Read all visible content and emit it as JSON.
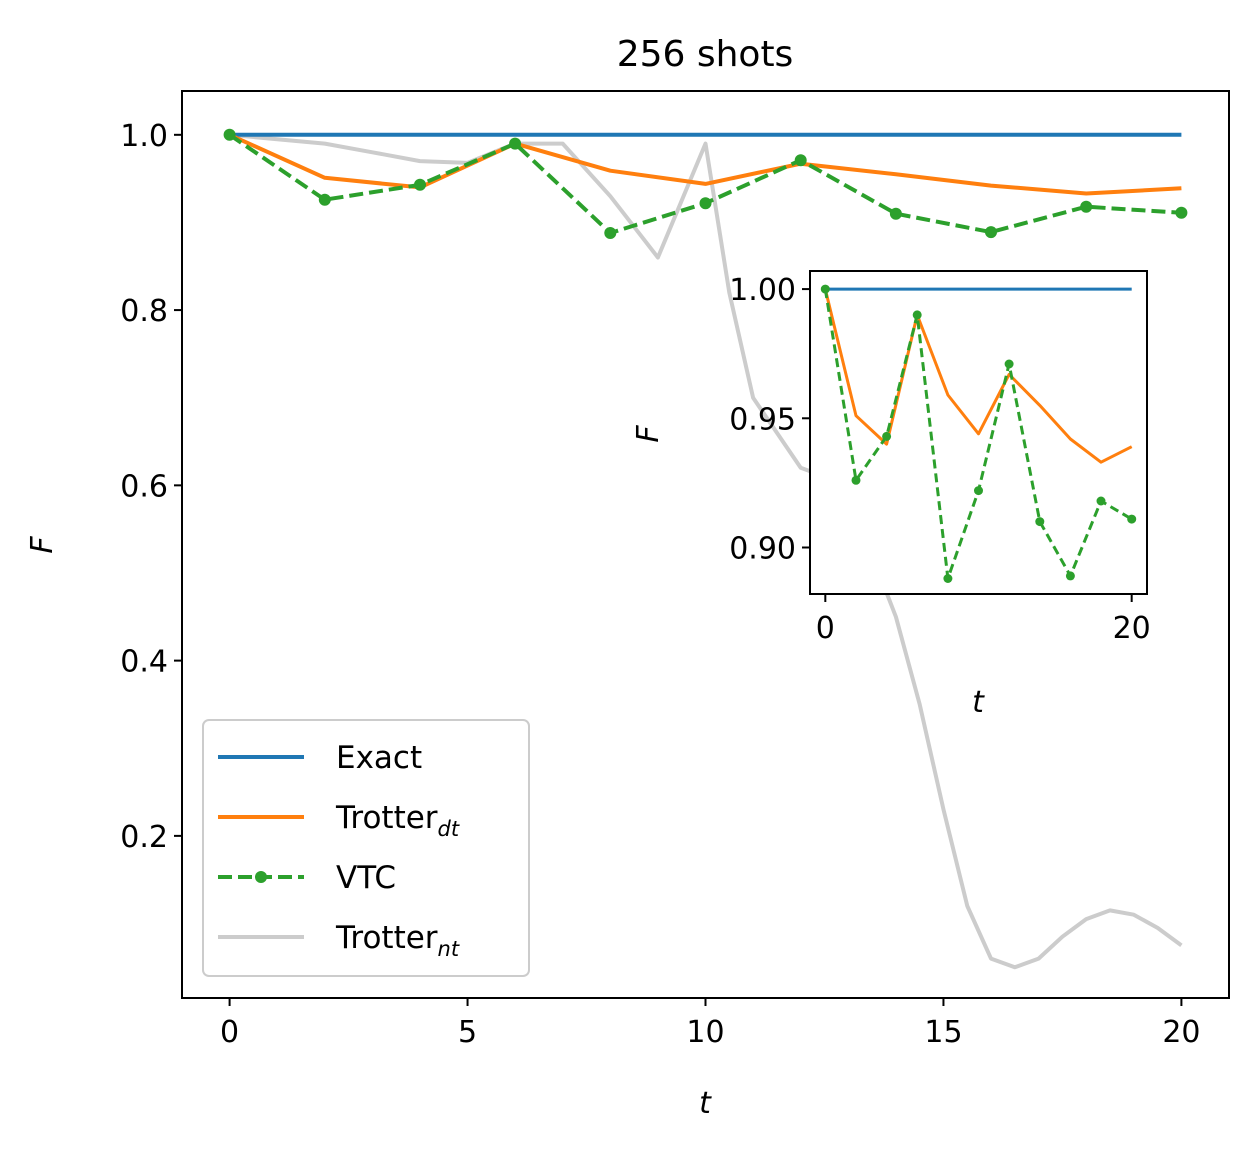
{
  "chart_data": [
    {
      "type": "line",
      "title": "256 shots",
      "xlabel": "t",
      "ylabel": "F",
      "xlim": [
        -1,
        21
      ],
      "ylim": [
        0.015,
        1.05
      ],
      "xticks": [
        0,
        5,
        10,
        15,
        20
      ],
      "yticks": [
        0.2,
        0.4,
        0.6,
        0.8,
        1.0
      ],
      "xtick_labels": [
        "0",
        "5",
        "10",
        "15",
        "20"
      ],
      "ytick_labels": [
        "0.2",
        "0.4",
        "0.6",
        "0.8",
        "1.0"
      ],
      "grid": false,
      "legend_position": "lower-left",
      "legend": [
        {
          "label": "Exact",
          "sub": ""
        },
        {
          "label": "Trotter",
          "sub": "dt"
        },
        {
          "label": "VTC",
          "sub": ""
        },
        {
          "label": "Trotter",
          "sub": "nt"
        }
      ],
      "series": [
        {
          "color": "#1f77b4",
          "style": "solid",
          "marker": "none",
          "x": [
            0,
            20
          ],
          "y": [
            1.0,
            1.0
          ]
        },
        {
          "color": "#ff7f0e",
          "style": "solid",
          "marker": "none",
          "x": [
            0,
            2,
            4,
            6,
            8,
            10,
            12,
            14,
            16,
            18,
            20
          ],
          "y": [
            1.0,
            0.951,
            0.94,
            0.99,
            0.959,
            0.944,
            0.967,
            0.955,
            0.942,
            0.933,
            0.939
          ]
        },
        {
          "color": "#2ca02c",
          "style": "dashed",
          "marker": "circle",
          "x": [
            0,
            2,
            4,
            6,
            8,
            10,
            12,
            14,
            16,
            18,
            20
          ],
          "y": [
            1.0,
            0.926,
            0.943,
            0.99,
            0.888,
            0.922,
            0.971,
            0.91,
            0.889,
            0.918,
            0.911
          ]
        },
        {
          "color": "#cccccc",
          "style": "solid",
          "marker": "none",
          "x": [
            0,
            1,
            2,
            3,
            4,
            5,
            6,
            7,
            8,
            9,
            10,
            10.5,
            11,
            11.5,
            12,
            12.5,
            13,
            13.5,
            14,
            14.5,
            15,
            15.5,
            16,
            16.5,
            17,
            17.5,
            18,
            18.5,
            19,
            19.5,
            20
          ],
          "y": [
            1.0,
            0.995,
            0.99,
            0.98,
            0.97,
            0.968,
            0.99,
            0.99,
            0.93,
            0.86,
            0.99,
            0.82,
            0.7,
            0.66,
            0.62,
            0.61,
            0.59,
            0.52,
            0.45,
            0.35,
            0.23,
            0.12,
            0.06,
            0.05,
            0.06,
            0.085,
            0.105,
            0.115,
            0.11,
            0.095,
            0.075
          ]
        }
      ]
    },
    {
      "type": "line",
      "title": "",
      "xlabel": "t",
      "ylabel": "F",
      "xlim": [
        -1,
        21
      ],
      "ylim": [
        0.882,
        1.007
      ],
      "xticks": [
        0,
        20
      ],
      "yticks": [
        0.9,
        0.95,
        1.0
      ],
      "xtick_labels": [
        "0",
        "20"
      ],
      "ytick_labels": [
        "0.90",
        "0.95",
        "1.00"
      ],
      "grid": false,
      "legend_position": "none",
      "series": [
        {
          "color": "#1f77b4",
          "style": "solid",
          "marker": "none",
          "x": [
            0,
            20
          ],
          "y": [
            1.0,
            1.0
          ]
        },
        {
          "color": "#ff7f0e",
          "style": "solid",
          "marker": "none",
          "x": [
            0,
            2,
            4,
            6,
            8,
            10,
            12,
            14,
            16,
            18,
            20
          ],
          "y": [
            1.0,
            0.951,
            0.94,
            0.99,
            0.959,
            0.944,
            0.967,
            0.955,
            0.942,
            0.933,
            0.939
          ]
        },
        {
          "color": "#2ca02c",
          "style": "dashed",
          "marker": "circle",
          "x": [
            0,
            2,
            4,
            6,
            8,
            10,
            12,
            14,
            16,
            18,
            20
          ],
          "y": [
            1.0,
            0.926,
            0.943,
            0.99,
            0.888,
            0.922,
            0.971,
            0.91,
            0.889,
            0.918,
            0.911
          ]
        }
      ]
    }
  ]
}
